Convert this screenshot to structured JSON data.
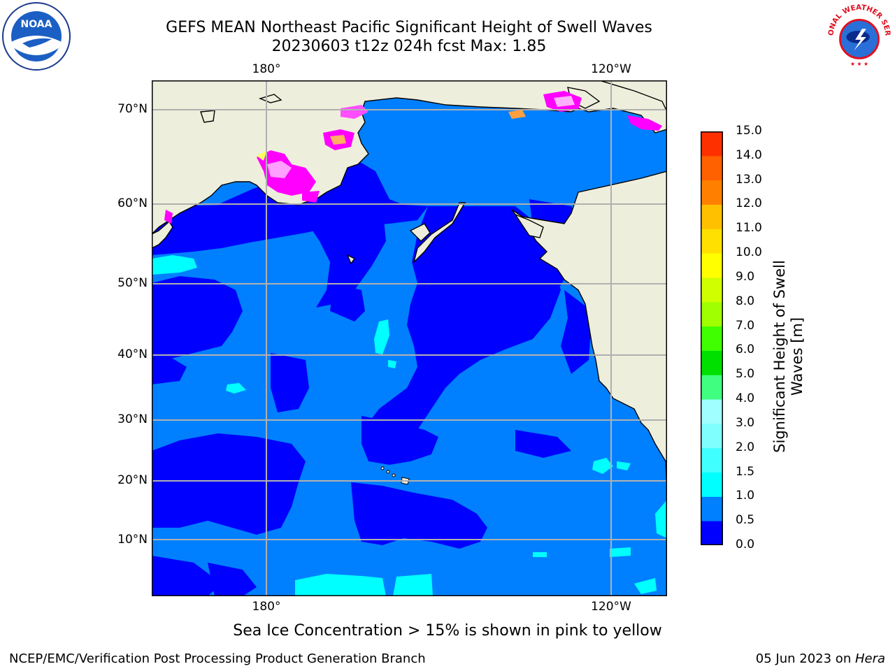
{
  "title_line1": "GEFS MEAN Northeast Pacific Significant Height of Swell Waves",
  "title_line2": "20230603 t12z 024h fcst   Max: 1.85",
  "map": {
    "lat_ticks": [
      "70°N",
      "60°N",
      "50°N",
      "40°N",
      "30°N",
      "20°N",
      "10°N"
    ],
    "lon_ticks_top": [
      "180°",
      "120°W"
    ],
    "lon_ticks_bottom": [
      "180°",
      "120°W"
    ],
    "colors": {
      "land": "#eeeedc",
      "deep_blue": "#0000ff",
      "mid_blue": "#0080ff",
      "cyan": "#00ffff",
      "grid": "#b0b0b0",
      "ice_pink": "#ff00ff"
    }
  },
  "colorbar": {
    "title": "Significant Height of Swell Waves [m]",
    "labels": [
      "0.0",
      "0.5",
      "1.0",
      "1.5",
      "2.0",
      "3.0",
      "4.0",
      "5.0",
      "6.0",
      "7.0",
      "8.0",
      "9.0",
      "10.0",
      "11.0",
      "12.0",
      "13.0",
      "14.0",
      "15.0"
    ],
    "colors": [
      "#0000ff",
      "#0080ff",
      "#00ffff",
      "#40ffff",
      "#80ffff",
      "#a0ffff",
      "#40ff80",
      "#00e000",
      "#40ff00",
      "#a0ff00",
      "#d0ff00",
      "#ffff00",
      "#ffe000",
      "#ffc000",
      "#ff8000",
      "#ff6000",
      "#ff3000"
    ]
  },
  "caption": "Sea Ice Concentration > 15% is shown in pink to yellow",
  "footer_left": "NCEP/EMC/Verification Post Processing Product Generation Branch",
  "footer_right_date": "05 Jun 2023 on ",
  "footer_right_host": "Hera",
  "logos": {
    "noaa_text": "NOAA",
    "nws_text": "NATIONAL WEATHER SERVICE"
  }
}
